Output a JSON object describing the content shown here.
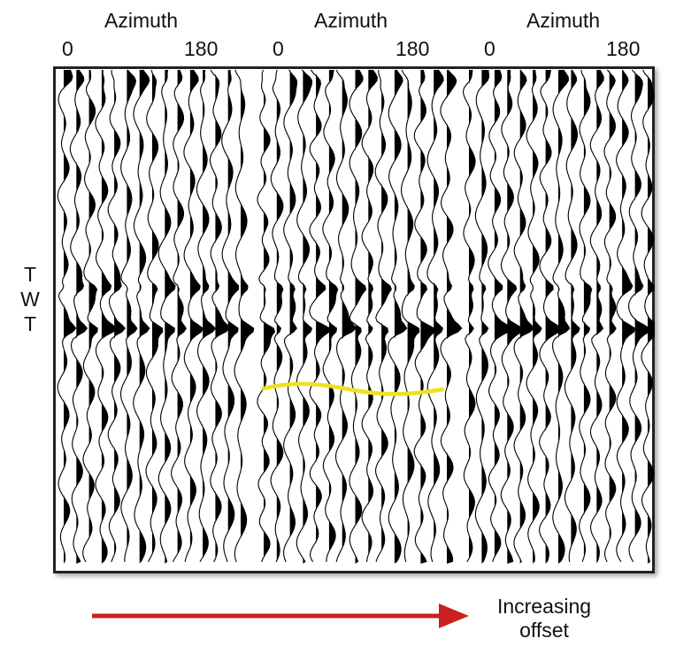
{
  "panels": [
    {
      "title": "Azimuth",
      "tick_start": "0",
      "tick_end": "180"
    },
    {
      "title": "Azimuth",
      "tick_start": "0",
      "tick_end": "180"
    },
    {
      "title": "Azimuth",
      "tick_start": "0",
      "tick_end": "180"
    }
  ],
  "vertical_label": [
    "T",
    "W",
    "T"
  ],
  "offset_label": [
    "Increasing",
    "offset"
  ],
  "colors": {
    "trace": "#000000",
    "highlight": "#f0e020",
    "arrow": "#cc1f1f",
    "frame": "#222222"
  }
}
